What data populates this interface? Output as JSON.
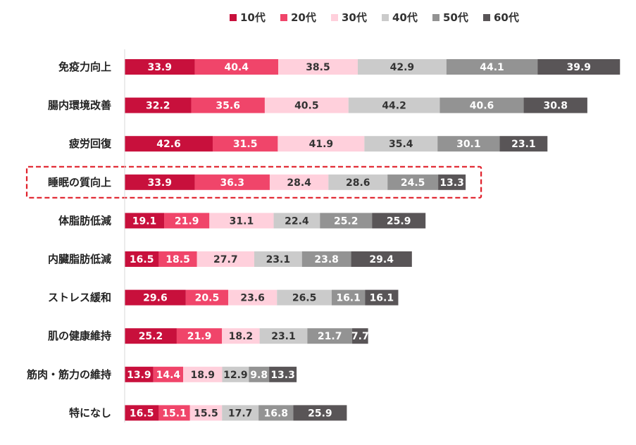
{
  "chart_data": {
    "type": "bar",
    "orientation": "horizontal",
    "stacked": true,
    "legend_position": "top",
    "grid": false,
    "categories": [
      "免疫力向上",
      "腸内環境改善",
      "疲労回復",
      "睡眠の質向上",
      "体脂肪低減",
      "内臓脂肪低減",
      "ストレス緩和",
      "肌の健康維持",
      "筋肉・筋力の維持",
      "特になし"
    ],
    "highlighted_category": "睡眠の質向上",
    "series": [
      {
        "name": "10代",
        "color": "#c8103c",
        "values": [
          33.9,
          32.2,
          42.6,
          33.9,
          19.1,
          16.5,
          29.6,
          25.2,
          13.9,
          16.5
        ]
      },
      {
        "name": "20代",
        "color": "#f0456a",
        "values": [
          40.4,
          35.6,
          31.5,
          36.3,
          21.9,
          18.5,
          20.5,
          21.9,
          14.4,
          15.1
        ]
      },
      {
        "name": "30代",
        "color": "#ffd0dc",
        "values": [
          38.5,
          40.5,
          41.9,
          28.4,
          31.1,
          27.7,
          23.6,
          18.2,
          18.9,
          15.5
        ]
      },
      {
        "name": "40代",
        "color": "#cbcbcb",
        "values": [
          42.9,
          44.2,
          35.4,
          28.6,
          22.4,
          23.1,
          26.5,
          23.1,
          12.9,
          17.7
        ]
      },
      {
        "name": "50代",
        "color": "#939393",
        "values": [
          44.1,
          40.6,
          30.1,
          24.5,
          25.2,
          23.8,
          16.1,
          21.7,
          9.8,
          16.8
        ]
      },
      {
        "name": "60代",
        "color": "#595557",
        "values": [
          39.9,
          30.8,
          23.1,
          13.3,
          25.9,
          29.4,
          16.1,
          7.7,
          13.3,
          25.9
        ]
      }
    ]
  }
}
